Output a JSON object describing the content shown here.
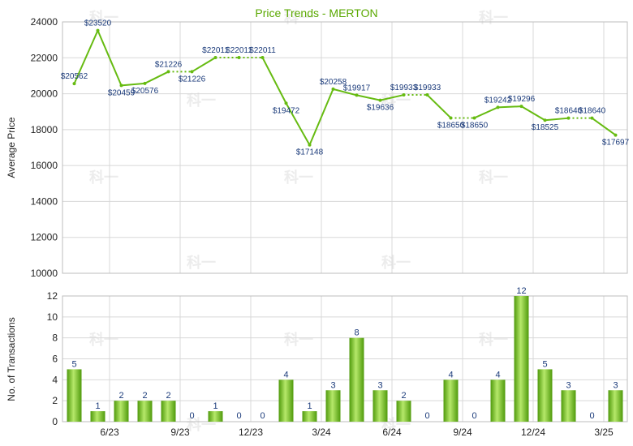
{
  "chart_data": [
    {
      "type": "line",
      "title": "Price Trends - MERTON",
      "ylabel": "Average Price",
      "ylim": [
        10000,
        24000
      ],
      "yticks": [
        10000,
        12000,
        14000,
        16000,
        18000,
        20000,
        22000,
        24000
      ],
      "series": [
        {
          "values": [
            20562,
            23520,
            20459,
            20576,
            21226,
            21226,
            22011,
            22011,
            22011,
            19472,
            17148,
            20258,
            19917,
            19636,
            19933,
            19933,
            18650,
            18650,
            19242,
            19296,
            18525,
            18640,
            18640,
            17697
          ],
          "labels": [
            "$20562",
            "$23520",
            "$20459",
            "$20576",
            "$21226",
            "$21226",
            "$22011",
            "$22011",
            "$22011",
            "$19472",
            "$17148",
            "$20258",
            "$19917",
            "$19636",
            "$19933",
            "$19933",
            "$18650",
            "$18650",
            "$19242",
            "$19296",
            "$18525",
            "$18640",
            "$18640",
            "$17697"
          ]
        }
      ],
      "grid": true,
      "color": "#66bb11"
    },
    {
      "type": "bar",
      "ylabel": "No. of Transactions",
      "ylim": [
        0,
        12
      ],
      "yticks": [
        0,
        2,
        4,
        6,
        8,
        10,
        12
      ],
      "categories": [
        "",
        "6/23",
        "",
        "",
        "9/23",
        "",
        "",
        "12/23",
        "",
        "",
        "3/24",
        "",
        "",
        "6/24",
        "",
        "",
        "9/24",
        "",
        "",
        "12/24",
        "",
        "",
        "3/25",
        ""
      ],
      "values": [
        5,
        1,
        2,
        2,
        2,
        0,
        1,
        0,
        0,
        4,
        1,
        3,
        8,
        3,
        2,
        0,
        4,
        0,
        4,
        12,
        5,
        3,
        0,
        3
      ],
      "xtick_labels": [
        "6/23",
        "9/23",
        "12/23",
        "3/24",
        "6/24",
        "9/24",
        "12/24",
        "3/25"
      ],
      "grid": true,
      "color": "#66bb11"
    }
  ],
  "watermark": "科一"
}
